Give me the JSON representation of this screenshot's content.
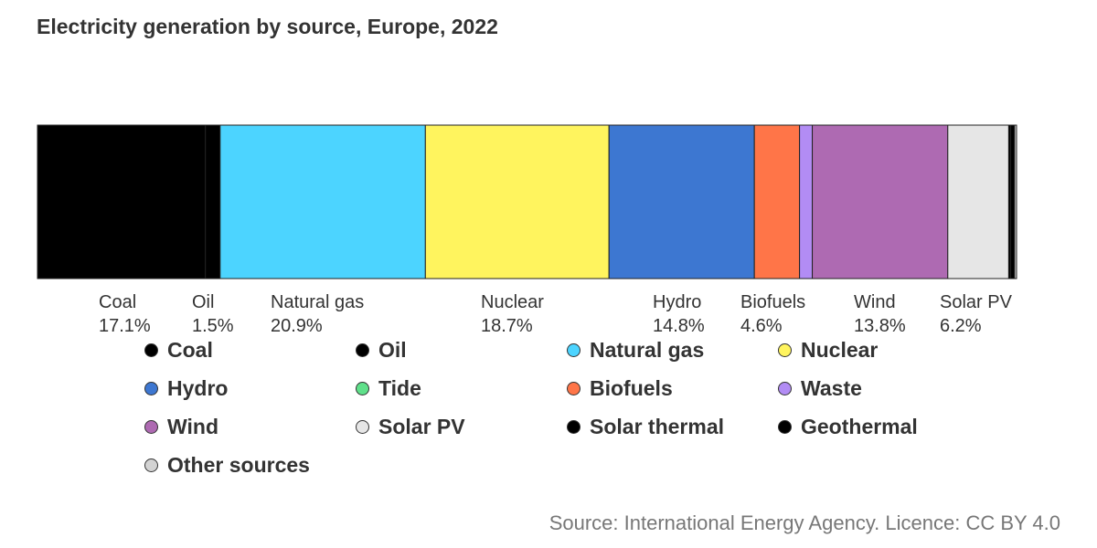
{
  "chart_data": {
    "type": "bar",
    "subtype": "stacked-horizontal-100",
    "title": "Electricity generation by source, Europe, 2022",
    "source": "Source: International Energy Agency. Licence: CC BY 4.0",
    "series": [
      {
        "name": "Coal",
        "value": 17.1,
        "label": "17.1%",
        "color": "#000000"
      },
      {
        "name": "Oil",
        "value": 1.5,
        "label": "1.5%",
        "color": "#000000"
      },
      {
        "name": "Natural gas",
        "value": 20.9,
        "label": "20.9%",
        "color": "#4cd4ff"
      },
      {
        "name": "Nuclear",
        "value": 18.7,
        "label": "18.7%",
        "color": "#fff45e"
      },
      {
        "name": "Hydro",
        "value": 14.8,
        "label": "14.8%",
        "color": "#3d77d1"
      },
      {
        "name": "Tide",
        "value": 0.0,
        "color": "#5fe08a"
      },
      {
        "name": "Biofuels",
        "value": 4.6,
        "label": "4.6%",
        "color": "#ff7548"
      },
      {
        "name": "Waste",
        "value": 1.3,
        "color": "#b28cf4"
      },
      {
        "name": "Wind",
        "value": 13.8,
        "label": "13.8%",
        "color": "#ae6ab2"
      },
      {
        "name": "Solar PV",
        "value": 6.2,
        "label": "6.2%",
        "color": "#e6e6e6"
      },
      {
        "name": "Solar thermal",
        "value": 0.2,
        "color": "#000000"
      },
      {
        "name": "Geothermal",
        "value": 0.4,
        "color": "#000000"
      },
      {
        "name": "Other sources",
        "value": 0.2,
        "color": "#d3d3d3"
      }
    ],
    "legend_position": "bottom",
    "grid": false
  }
}
